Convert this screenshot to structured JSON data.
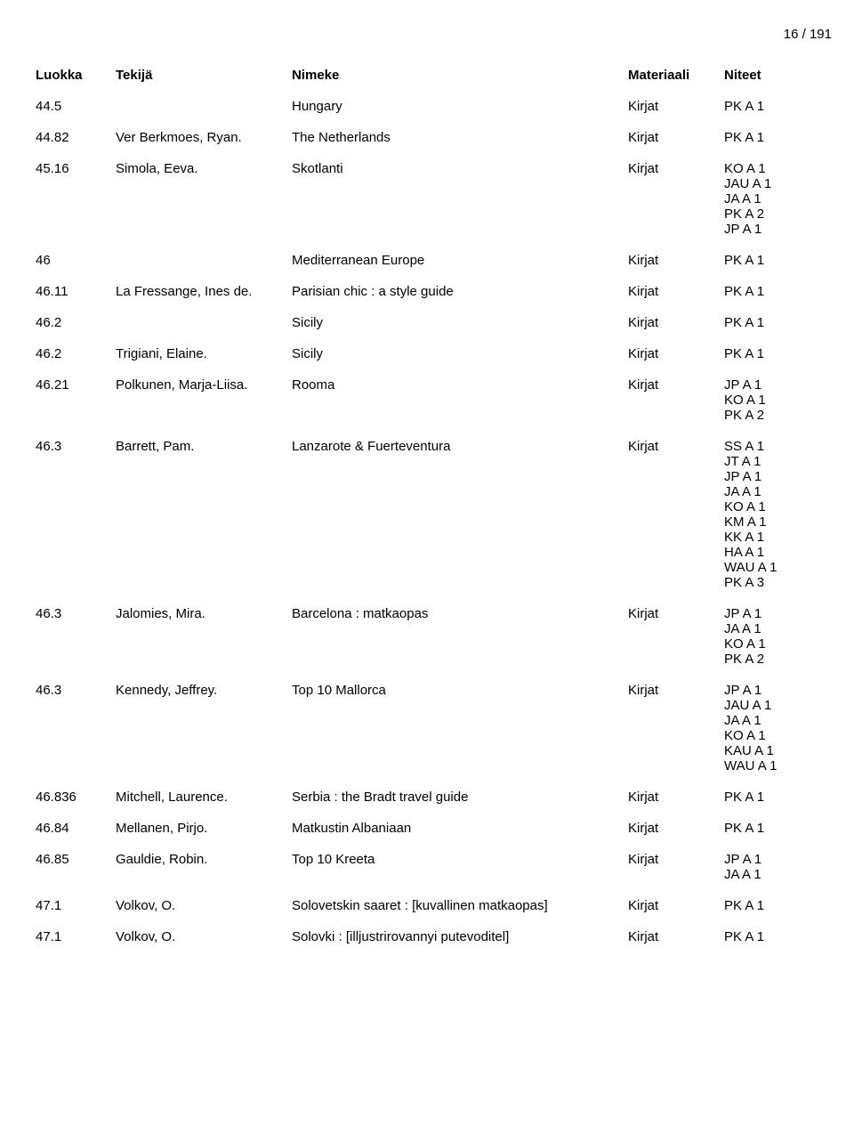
{
  "page_number": "16 / 191",
  "headers": {
    "luokka": "Luokka",
    "tekija": "Tekijä",
    "nimeke": "Nimeke",
    "materiaali": "Materiaali",
    "niteet": "Niteet"
  },
  "rows": [
    {
      "luokka": "44.5",
      "tekija": "",
      "nimeke": "Hungary",
      "materiaali": "Kirjat",
      "niteet": [
        "PK A 1"
      ]
    },
    {
      "luokka": "44.82",
      "tekija": "Ver Berkmoes, Ryan.",
      "nimeke": "The Netherlands",
      "materiaali": "Kirjat",
      "niteet": [
        "PK A 1"
      ]
    },
    {
      "luokka": "45.16",
      "tekija": "Simola, Eeva.",
      "nimeke": "Skotlanti",
      "materiaali": "Kirjat",
      "niteet": [
        "KO A 1",
        "JAU A 1",
        "JA A 1",
        "PK A 2",
        "JP A 1"
      ]
    },
    {
      "luokka": "46",
      "tekija": "",
      "nimeke": "Mediterranean Europe",
      "materiaali": "Kirjat",
      "niteet": [
        "PK A 1"
      ]
    },
    {
      "luokka": "46.11",
      "tekija": "La Fressange, Ines de.",
      "nimeke": "Parisian chic : a style guide",
      "materiaali": "Kirjat",
      "niteet": [
        "PK A 1"
      ]
    },
    {
      "luokka": "46.2",
      "tekija": "",
      "nimeke": "Sicily",
      "materiaali": "Kirjat",
      "niteet": [
        "PK A 1"
      ]
    },
    {
      "luokka": "46.2",
      "tekija": "Trigiani, Elaine.",
      "nimeke": "Sicily",
      "materiaali": "Kirjat",
      "niteet": [
        "PK A 1"
      ]
    },
    {
      "luokka": "46.21",
      "tekija": "Polkunen, Marja-Liisa.",
      "nimeke": "Rooma",
      "materiaali": "Kirjat",
      "niteet": [
        "JP A 1",
        "KO A 1",
        "PK A 2"
      ]
    },
    {
      "luokka": "46.3",
      "tekija": "Barrett, Pam.",
      "nimeke": "Lanzarote & Fuerteventura",
      "materiaali": "Kirjat",
      "niteet": [
        "SS A 1",
        "JT A 1",
        "JP A 1",
        "JA A 1",
        "KO A 1",
        "KM A 1",
        "KK A 1",
        "HA A 1",
        "WAU A 1",
        "PK A 3"
      ]
    },
    {
      "luokka": "46.3",
      "tekija": "Jalomies, Mira.",
      "nimeke": "Barcelona : matkaopas",
      "materiaali": "Kirjat",
      "niteet": [
        "JP A 1",
        "JA A 1",
        "KO A 1",
        "PK A 2"
      ]
    },
    {
      "luokka": "46.3",
      "tekija": "Kennedy, Jeffrey.",
      "nimeke": "Top 10 Mallorca",
      "materiaali": "Kirjat",
      "niteet": [
        "JP A 1",
        "JAU A 1",
        "JA A 1",
        "KO A 1",
        "KAU A 1",
        "WAU A 1"
      ]
    },
    {
      "luokka": "46.836",
      "tekija": "Mitchell, Laurence.",
      "nimeke": "Serbia : the Bradt travel guide",
      "materiaali": "Kirjat",
      "niteet": [
        "PK A 1"
      ]
    },
    {
      "luokka": "46.84",
      "tekija": "Mellanen, Pirjo.",
      "nimeke": "Matkustin Albaniaan",
      "materiaali": "Kirjat",
      "niteet": [
        "PK A 1"
      ]
    },
    {
      "luokka": "46.85",
      "tekija": "Gauldie, Robin.",
      "nimeke": "Top 10 Kreeta",
      "materiaali": "Kirjat",
      "niteet": [
        "JP A 1",
        "JA A 1"
      ]
    },
    {
      "luokka": "47.1",
      "tekija": "Volkov, O.",
      "nimeke": "Solovetskin saaret : [kuvallinen matkaopas]",
      "materiaali": "Kirjat",
      "niteet": [
        "PK A 1"
      ]
    },
    {
      "luokka": "47.1",
      "tekija": "Volkov, O.",
      "nimeke": "Solovki : [illjustrirovannyi putevoditel]",
      "materiaali": "Kirjat",
      "niteet": [
        "PK A 1"
      ]
    }
  ]
}
